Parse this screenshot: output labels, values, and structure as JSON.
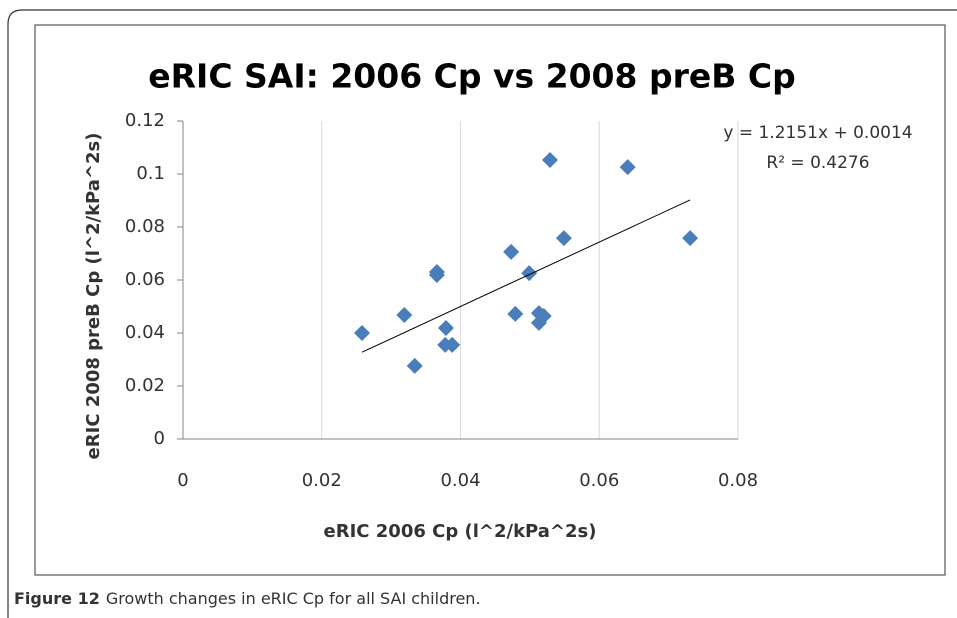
{
  "chart_data": {
    "type": "scatter",
    "title": "eRIC SAI: 2006 Cp vs 2008 preB Cp",
    "xlabel": "eRIC 2006 Cp (l^2/kPa^2s)",
    "ylabel": "eRIC 2008 preB Cp (l^2/kPa^2s)",
    "annotations": [
      "y = 1.2151x + 0.0014",
      "R² = 0.4276"
    ],
    "series": [
      {
        "name": "eRIC SAI",
        "color": "#4a7ebb",
        "x": [
          0.0258,
          0.0319,
          0.0334,
          0.0366,
          0.0366,
          0.0379,
          0.0378,
          0.0388,
          0.0473,
          0.0479,
          0.0499,
          0.0529,
          0.0513,
          0.052,
          0.0513,
          0.0549,
          0.0641,
          0.0731
        ],
        "values": [
          0.04,
          0.0468,
          0.0276,
          0.063,
          0.0619,
          0.0419,
          0.0355,
          0.0355,
          0.0706,
          0.0472,
          0.0626,
          0.1053,
          0.0475,
          0.0464,
          0.0438,
          0.0758,
          0.1026,
          0.0758
        ]
      }
    ],
    "trendline": {
      "slope": 1.2151,
      "intercept": 0.0014,
      "color": "#000000"
    },
    "xlim": [
      0,
      0.08
    ],
    "xticks": [
      0,
      0.02,
      0.04,
      0.06,
      0.08
    ],
    "ylim": [
      0,
      0.12
    ],
    "yticks": [
      0,
      0.02,
      0.04,
      0.06,
      0.08,
      0.1,
      0.12
    ],
    "grid": "x"
  },
  "caption": {
    "label": "Figure 12",
    "text": "Growth changes in eRIC Cp for all SAI children."
  }
}
